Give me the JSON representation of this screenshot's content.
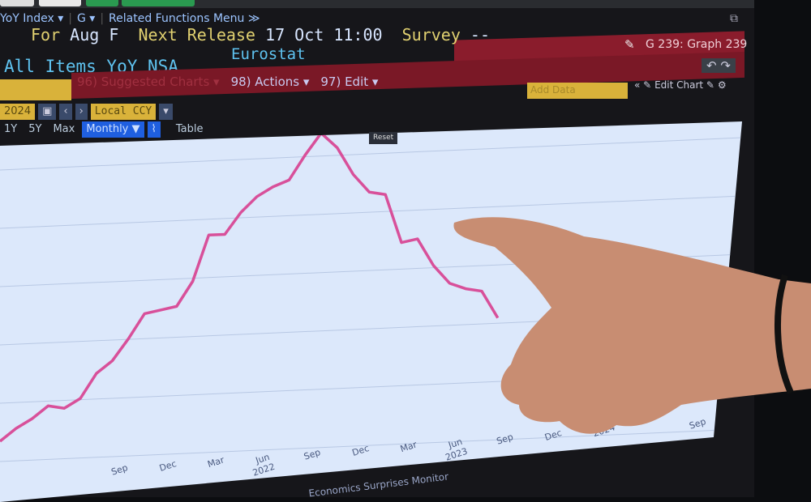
{
  "header": {
    "ticker_suffix": "YoY Index ▾",
    "g_menu": "G ▾",
    "related_menu": "Related Functions Menu ≫",
    "for_label": "For",
    "for_value": "Aug F",
    "next_release_label": "Next Release",
    "next_release_value": "17 Oct 11:00",
    "survey_label": "Survey",
    "survey_value": "--",
    "description": "All Items YoY NSA",
    "source": "Eurostat",
    "graph_label": "G 239: Graph 239"
  },
  "menu_bar": {
    "suggested_charts": "96) Suggested Charts ▾",
    "actions": "98) Actions ▾",
    "edit": "97) Edit ▾",
    "add_data": "Add Data",
    "edit_chart": "Edit Chart"
  },
  "toolbar": {
    "date_field": "2024",
    "currency": "Local CCY",
    "ranges": [
      "1Y",
      "5Y",
      "Max"
    ],
    "frequency": "Monthly ▼",
    "table_tab": "Table",
    "reset": "Reset"
  },
  "footer": {
    "text": "Economics Surprises Monitor"
  },
  "colors": {
    "line": "#d8509a",
    "plot_bg": "#dce8fb",
    "header_red": "#7a1826",
    "accent_yellow": "#d9b23a",
    "selected_blue": "#1f5fe0"
  },
  "chart_data": {
    "type": "line",
    "title": "",
    "xlabel": "",
    "ylabel": "",
    "grid": true,
    "x": [
      "2021-02",
      "2021-03",
      "2021-04",
      "2021-05",
      "2021-06",
      "2021-07",
      "2021-08",
      "2021-09",
      "2021-10",
      "2021-11",
      "2021-12",
      "2022-01",
      "2022-02",
      "2022-03",
      "2022-04",
      "2022-05",
      "2022-06",
      "2022-07",
      "2022-08",
      "2022-09",
      "2022-10",
      "2022-11",
      "2022-12",
      "2023-01",
      "2023-02",
      "2023-03",
      "2023-04",
      "2023-05",
      "2023-06",
      "2023-07",
      "2023-08",
      "2023-09"
    ],
    "values": [
      0.9,
      1.3,
      1.6,
      2.0,
      1.9,
      2.2,
      3.0,
      3.4,
      4.1,
      4.9,
      5.0,
      5.1,
      5.9,
      7.4,
      7.4,
      8.1,
      8.6,
      8.9,
      9.1,
      9.9,
      10.6,
      10.1,
      9.2,
      8.6,
      8.5,
      6.9,
      7.0,
      6.1,
      5.5,
      5.3,
      5.2,
      4.3
    ],
    "x_ticks": [
      {
        "date": "2021-09",
        "label": "Sep"
      },
      {
        "date": "2021-12",
        "label": "Dec"
      },
      {
        "date": "2022-03",
        "label": "Mar"
      },
      {
        "date": "2022-06",
        "label": "Jun",
        "year": "2022"
      },
      {
        "date": "2022-09",
        "label": "Sep"
      },
      {
        "date": "2022-12",
        "label": "Dec"
      },
      {
        "date": "2023-03",
        "label": "Mar"
      },
      {
        "date": "2023-06",
        "label": "Jun",
        "year": "2023"
      },
      {
        "date": "2023-09",
        "label": "Sep"
      },
      {
        "date": "2023-12",
        "label": "Dec"
      },
      {
        "date": "2024-03",
        "label": "2024"
      },
      {
        "date": "2024-09",
        "label": "Sep"
      }
    ]
  }
}
